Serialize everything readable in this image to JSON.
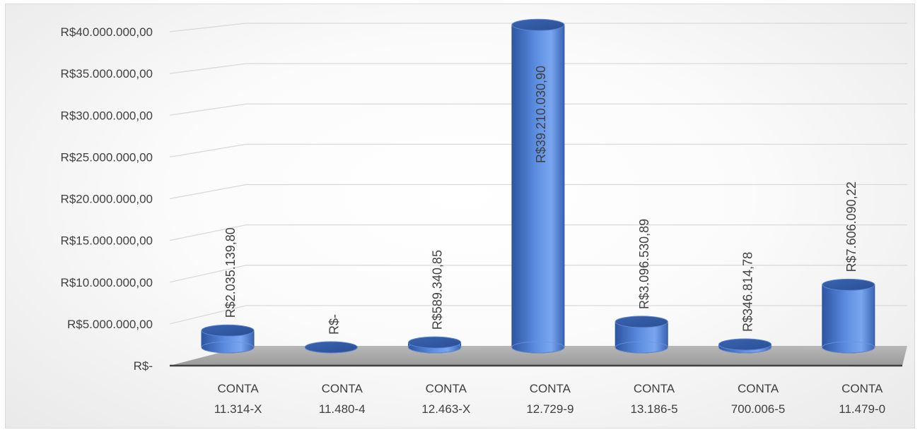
{
  "chart_data": {
    "type": "bar",
    "style": "3d-cylinder",
    "categories": [
      [
        "CONTA",
        "11.314-X"
      ],
      [
        "CONTA",
        "11.480-4"
      ],
      [
        "CONTA",
        "12.463-X"
      ],
      [
        "CONTA",
        "12.729-9"
      ],
      [
        "CONTA",
        "13.186-5"
      ],
      [
        "CONTA",
        "700.006-5"
      ],
      [
        "CONTA",
        "11.479-0"
      ]
    ],
    "values": [
      2035139.8,
      0,
      589340.85,
      39210030.9,
      3096530.89,
      346814.78,
      7606090.22
    ],
    "data_labels": [
      "R$2.035.139,80",
      "R$-",
      "R$589.340,85",
      "R$39.210.030,90",
      "R$3.096.530,89",
      "R$346.814,78",
      "R$7.606.090,22"
    ],
    "yticks": [
      0,
      5000000,
      10000000,
      15000000,
      20000000,
      25000000,
      30000000,
      35000000,
      40000000
    ],
    "ytick_labels": [
      "R$-",
      "R$5.000.000,00",
      "R$10.000.000,00",
      "R$15.000.000,00",
      "R$20.000.000,00",
      "R$25.000.000,00",
      "R$30.000.000,00",
      "R$35.000.000,00",
      "R$40.000.000,00"
    ],
    "ylim": [
      0,
      40000000
    ],
    "grid": true,
    "legend": "none",
    "colors": {
      "bar": "#4472c4",
      "floor": "#a6a6a6",
      "grid": "#d9d9d9"
    }
  }
}
